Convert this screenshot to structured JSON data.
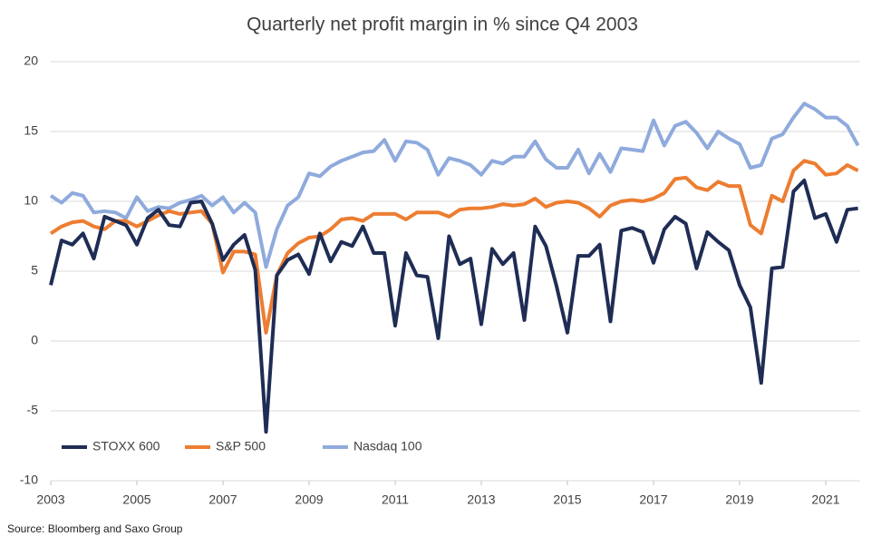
{
  "chart_data": {
    "type": "line",
    "title": "Quarterly net profit margin in % since Q4 2003",
    "source": "Source: Bloomberg and Saxo Group",
    "x": [
      2003,
      2003.25,
      2003.5,
      2003.75,
      2004,
      2004.25,
      2004.5,
      2004.75,
      2005,
      2005.25,
      2005.5,
      2005.75,
      2006,
      2006.25,
      2006.5,
      2006.75,
      2007,
      2007.25,
      2007.5,
      2007.75,
      2008,
      2008.25,
      2008.5,
      2008.75,
      2009,
      2009.25,
      2009.5,
      2009.75,
      2010,
      2010.25,
      2010.5,
      2010.75,
      2011,
      2011.25,
      2011.5,
      2011.75,
      2012,
      2012.25,
      2012.5,
      2012.75,
      2013,
      2013.25,
      2013.5,
      2013.75,
      2014,
      2014.25,
      2014.5,
      2014.75,
      2015,
      2015.25,
      2015.5,
      2015.75,
      2016,
      2016.25,
      2016.5,
      2016.75,
      2017,
      2017.25,
      2017.5,
      2017.75,
      2018,
      2018.25,
      2018.5,
      2018.75,
      2019,
      2019.25,
      2019.5,
      2019.75,
      2020,
      2020.25,
      2020.5,
      2020.75,
      2021,
      2021.25,
      2021.5,
      2021.75
    ],
    "series": [
      {
        "name": "STOXX 600",
        "color": "#1f2d55",
        "values": [
          4.0,
          7.2,
          6.9,
          7.7,
          5.9,
          8.9,
          8.6,
          8.3,
          6.9,
          8.8,
          9.4,
          8.3,
          8.2,
          9.9,
          10.0,
          8.4,
          5.8,
          6.9,
          7.6,
          5.1,
          -6.5,
          4.7,
          5.8,
          6.2,
          4.8,
          7.7,
          5.7,
          7.1,
          6.8,
          8.2,
          6.3,
          6.3,
          1.1,
          6.3,
          4.7,
          4.6,
          0.2,
          7.5,
          5.5,
          5.9,
          1.2,
          6.6,
          5.5,
          6.3,
          1.5,
          8.2,
          6.8,
          3.9,
          0.6,
          6.1,
          6.1,
          6.9,
          1.4,
          7.9,
          8.1,
          7.8,
          5.6,
          8.0,
          8.9,
          8.4,
          5.2,
          7.8,
          7.1,
          6.5,
          4.0,
          2.4,
          -3.0,
          5.2,
          5.3,
          10.7,
          11.5,
          8.8,
          9.1,
          7.1,
          9.4,
          9.5
        ]
      },
      {
        "name": "S&P 500",
        "color": "#ed7d31",
        "values": [
          7.7,
          8.2,
          8.5,
          8.6,
          8.2,
          8.0,
          8.6,
          8.6,
          8.2,
          8.6,
          9.0,
          9.3,
          9.1,
          9.2,
          9.3,
          8.4,
          4.9,
          6.4,
          6.4,
          6.2,
          0.6,
          4.7,
          6.3,
          7.0,
          7.4,
          7.5,
          8.0,
          8.7,
          8.8,
          8.6,
          9.1,
          9.1,
          9.1,
          8.7,
          9.2,
          9.2,
          9.2,
          8.9,
          9.4,
          9.5,
          9.5,
          9.6,
          9.8,
          9.7,
          9.8,
          10.2,
          9.6,
          9.9,
          10.0,
          9.9,
          9.5,
          8.9,
          9.7,
          10.0,
          10.1,
          10.0,
          10.2,
          10.6,
          11.6,
          11.7,
          11.0,
          10.8,
          11.4,
          11.1,
          11.1,
          8.3,
          7.7,
          10.4,
          10.0,
          12.2,
          12.9,
          12.7,
          11.9,
          12.0,
          12.6,
          12.2
        ]
      },
      {
        "name": "Nasdaq 100",
        "color": "#8faadc",
        "values": [
          10.4,
          9.9,
          10.6,
          10.4,
          9.2,
          9.3,
          9.2,
          8.8,
          10.3,
          9.3,
          9.6,
          9.5,
          9.9,
          10.1,
          10.4,
          9.7,
          10.3,
          9.2,
          9.9,
          9.2,
          5.3,
          8.0,
          9.7,
          10.3,
          12.0,
          11.8,
          12.5,
          12.9,
          13.2,
          13.5,
          13.6,
          14.4,
          12.9,
          14.3,
          14.2,
          13.7,
          11.9,
          13.1,
          12.9,
          12.6,
          11.9,
          12.9,
          12.7,
          13.2,
          13.2,
          14.3,
          13.0,
          12.4,
          12.4,
          13.7,
          12.0,
          13.4,
          12.1,
          13.8,
          13.7,
          13.6,
          15.8,
          14.0,
          15.4,
          15.7,
          14.9,
          13.8,
          15.0,
          14.5,
          14.1,
          12.4,
          12.6,
          14.5,
          14.8,
          16.0,
          17.0,
          16.6,
          16.0,
          16.0,
          15.4,
          14.0
        ]
      }
    ],
    "xlim": [
      2003,
      2021.8
    ],
    "xticks": [
      2003,
      2005,
      2007,
      2009,
      2011,
      2013,
      2015,
      2017,
      2019,
      2021
    ],
    "ylim": [
      -10,
      20
    ],
    "yticks": [
      -10,
      -5,
      0,
      5,
      10,
      15,
      20
    ],
    "grid": true,
    "legend": "lower left"
  }
}
